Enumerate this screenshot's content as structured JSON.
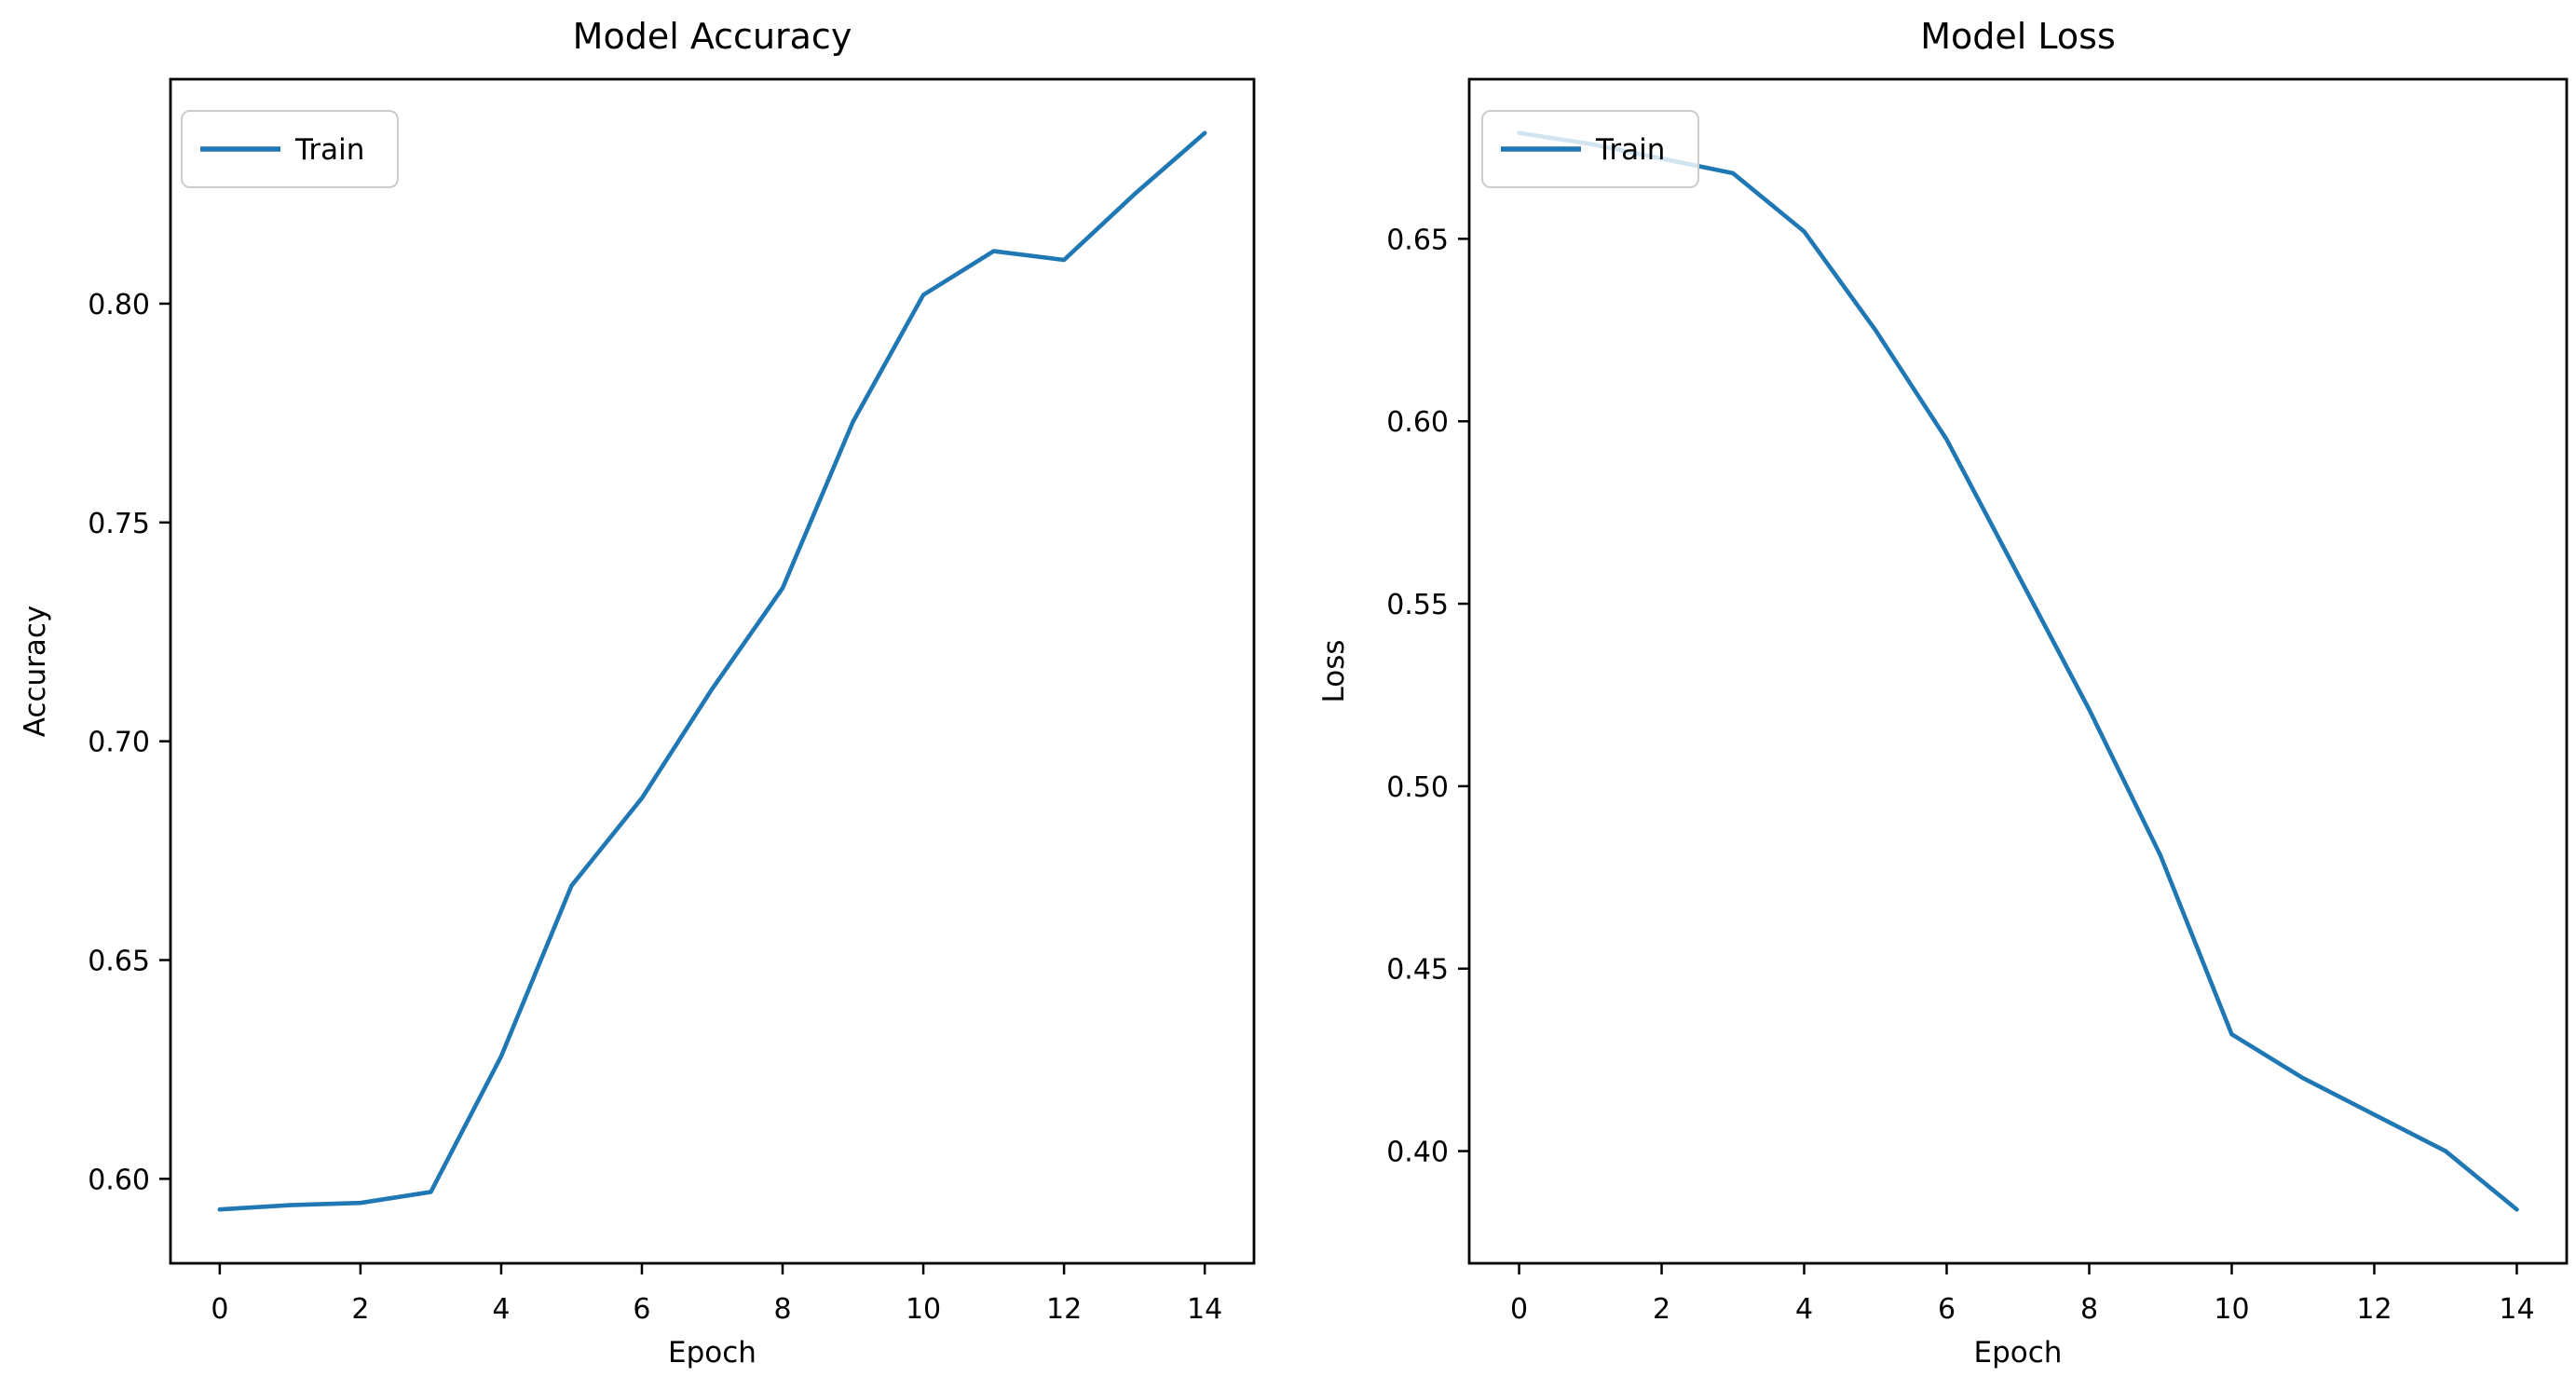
{
  "figure": {
    "background": "#ffffff",
    "line_color": "#1f77b4",
    "spine_color": "#000000",
    "text_color": "#000000",
    "legend_border_color": "#cccccc"
  },
  "chart_data": [
    {
      "type": "line",
      "title": "Model Accuracy",
      "xlabel": "Epoch",
      "ylabel": "Accuracy",
      "legend": {
        "entries": [
          "Train"
        ],
        "position": "upper left"
      },
      "grid": false,
      "x": [
        0,
        1,
        2,
        3,
        4,
        5,
        6,
        7,
        8,
        9,
        10,
        11,
        12,
        13,
        14
      ],
      "series": [
        {
          "name": "Train",
          "values": [
            0.593,
            0.594,
            0.5945,
            0.597,
            0.628,
            0.667,
            0.687,
            0.712,
            0.735,
            0.773,
            0.802,
            0.812,
            0.81,
            0.825,
            0.839
          ]
        }
      ],
      "xlim": [
        -0.7,
        14.7
      ],
      "ylim": [
        0.5807,
        0.8513
      ],
      "xticks": [
        0,
        2,
        4,
        6,
        8,
        10,
        12,
        14
      ],
      "xtick_labels": [
        "0",
        "2",
        "4",
        "6",
        "8",
        "10",
        "12",
        "14"
      ],
      "yticks": [
        0.6,
        0.65,
        0.7,
        0.75,
        0.8
      ],
      "ytick_labels": [
        "0.60",
        "0.65",
        "0.70",
        "0.75",
        "0.80"
      ]
    },
    {
      "type": "line",
      "title": "Model Loss",
      "xlabel": "Epoch",
      "ylabel": "Loss",
      "legend": {
        "entries": [
          "Train"
        ],
        "position": "upper left"
      },
      "grid": false,
      "x": [
        0,
        1,
        2,
        3,
        4,
        5,
        6,
        7,
        8,
        9,
        10,
        11,
        12,
        13,
        14
      ],
      "series": [
        {
          "name": "Train",
          "values": [
            0.679,
            0.676,
            0.672,
            0.668,
            0.652,
            0.625,
            0.595,
            0.558,
            0.521,
            0.481,
            0.432,
            0.42,
            0.41,
            0.4,
            0.384
          ]
        }
      ],
      "xlim": [
        -0.7,
        14.7
      ],
      "ylim": [
        0.36925,
        0.69375
      ],
      "xticks": [
        0,
        2,
        4,
        6,
        8,
        10,
        12,
        14
      ],
      "xtick_labels": [
        "0",
        "2",
        "4",
        "6",
        "8",
        "10",
        "12",
        "14"
      ],
      "yticks": [
        0.4,
        0.45,
        0.5,
        0.55,
        0.6,
        0.65
      ],
      "ytick_labels": [
        "0.40",
        "0.45",
        "0.50",
        "0.55",
        "0.60",
        "0.65"
      ]
    }
  ]
}
